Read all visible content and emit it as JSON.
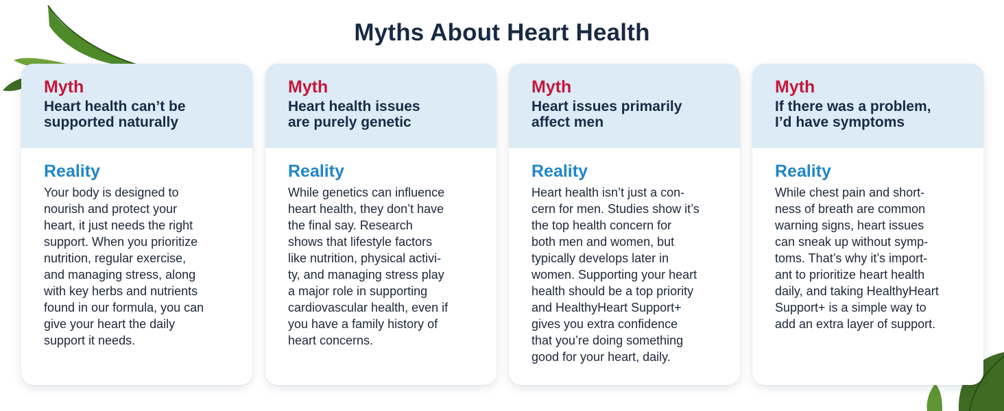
{
  "page": {
    "title": "Myths About Heart Health"
  },
  "cards": [
    {
      "myth_label": "Myth",
      "myth_lines": [
        "Heart health can’t be",
        "supported naturally"
      ],
      "reality_label": "Reality",
      "reality_lines": [
        "Your body is designed to",
        "nourish and protect your",
        "heart, it just needs the right",
        "support. When you prioritize",
        "nutrition, regular exercise,",
        "and managing stress, along",
        "with key herbs and nutrients",
        "found in our formula, you can",
        "give your heart the daily",
        "support it needs."
      ]
    },
    {
      "myth_label": "Myth",
      "myth_lines": [
        "Heart health issues",
        "are purely genetic"
      ],
      "reality_label": "Reality",
      "reality_lines": [
        "While genetics can influence",
        "heart health, they don’t have",
        "the final say. Research",
        "shows that lifestyle factors",
        "like nutrition, physical activi-",
        "ty, and managing stress play",
        "a major role in supporting",
        "cardiovascular health, even if",
        "you have a family history of",
        "heart concerns."
      ]
    },
    {
      "myth_label": "Myth",
      "myth_lines": [
        "Heart issues primarily",
        "affect men"
      ],
      "reality_label": "Reality",
      "reality_lines": [
        "Heart health isn’t just a con-",
        "cern for men. Studies show it’s",
        "the top health concern for",
        "both men and women, but",
        "typically develops later in",
        "women. Supporting your heart",
        "health should be a top priority",
        "and HealthyHeart Support+",
        "gives you extra confidence",
        "that you’re doing something",
        "good for your heart, daily."
      ]
    },
    {
      "myth_label": "Myth",
      "myth_lines": [
        "If there was a problem,",
        "I’d have symptoms"
      ],
      "reality_label": "Reality",
      "reality_lines": [
        "While chest pain and short-",
        "ness of breath are common",
        "warning signs, heart issues",
        "can sneak up without symp-",
        "toms. That’s why it’s import-",
        "ant to prioritize heart health",
        "daily, and taking HealthyHeart",
        "Support+ is a simple way to",
        "add an extra layer of support."
      ]
    }
  ],
  "decor": {
    "leaf_icon": "leaf-icon",
    "leaf_color_dark": "#3f6b22",
    "leaf_color_light": "#6fa33a"
  },
  "colors": {
    "title": "#182a44",
    "myth": "#c2193a",
    "reality": "#1f86c8",
    "card_header_bg": "#dcebf6"
  }
}
